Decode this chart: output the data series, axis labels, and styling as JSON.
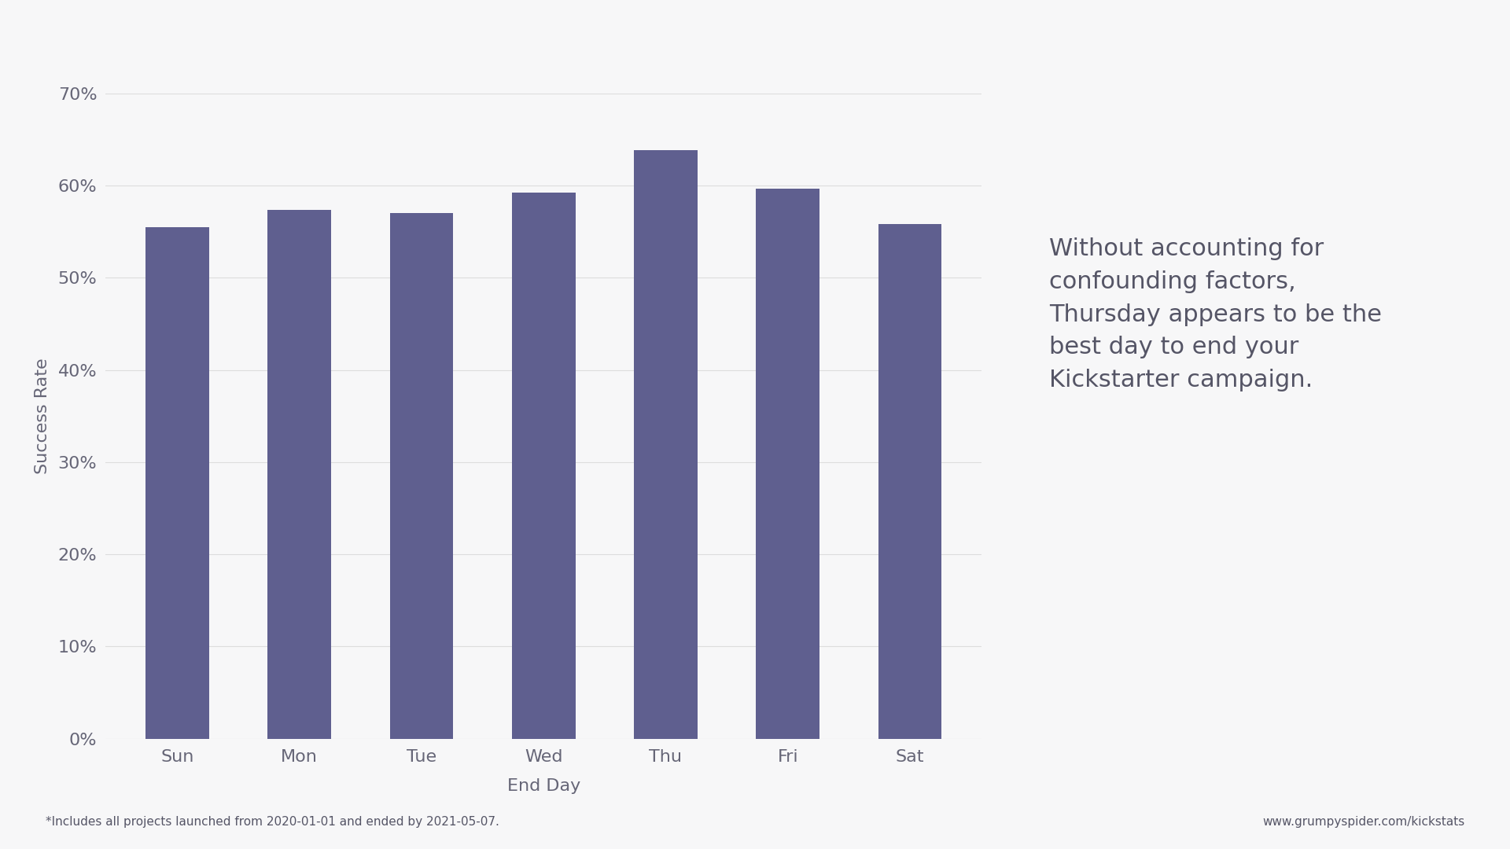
{
  "categories": [
    "Sun",
    "Mon",
    "Tue",
    "Wed",
    "Thu",
    "Fri",
    "Sat"
  ],
  "values": [
    0.555,
    0.574,
    0.57,
    0.592,
    0.638,
    0.597,
    0.558
  ],
  "bar_color": "#5f5f8f",
  "background_color": "#f7f7f8",
  "ylabel": "Success Rate",
  "xlabel": "End Day",
  "ylim": [
    0,
    0.7
  ],
  "yticks": [
    0,
    0.1,
    0.2,
    0.3,
    0.4,
    0.5,
    0.6,
    0.7
  ],
  "annotation_text": "Without accounting for\nconfounding factors,\nThursday appears to be the\nbest day to end your\nKickstarter campaign.",
  "footnote": "*Includes all projects launched from 2020-01-01 and ended by 2021-05-07.",
  "website": "www.grumpyspider.com/kickstats",
  "annotation_color": "#555566",
  "grid_color": "#dddddd",
  "label_color": "#666677",
  "tick_fontsize": 16,
  "axis_label_fontsize": 16,
  "annotation_fontsize": 22,
  "footnote_fontsize": 11
}
